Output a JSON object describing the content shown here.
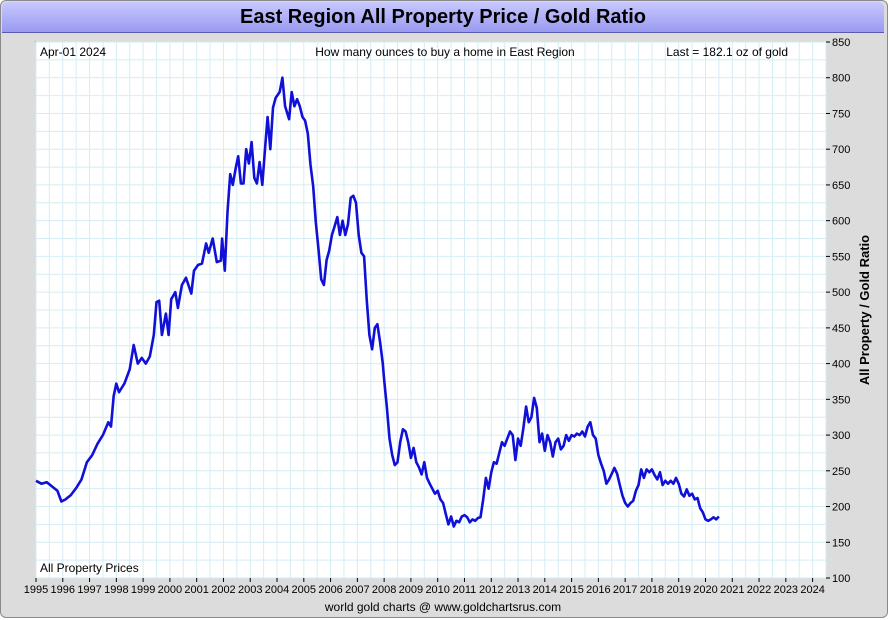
{
  "title": "East Region All Property Price / Gold Ratio",
  "footer": "world gold charts @ www.goldchartsrus.com",
  "colors": {
    "line": "#1010d8",
    "grid": "#d4eef4",
    "title_bg": "#aaaaff",
    "frame": "#dcdcdc"
  },
  "chart_data": {
    "type": "line",
    "title": "East Region All Property Price / Gold Ratio",
    "annotations": {
      "date": "Apr-01  2024",
      "subtitle": "How many ounces to buy a home in East Region",
      "last": "Last = 182.1 oz of gold",
      "series_label": "All Property Prices"
    },
    "xlabel": "",
    "ylabel": "All Property / Gold Ratio",
    "xlim": [
      1995,
      2024.5
    ],
    "ylim": [
      100,
      850
    ],
    "xticks": [
      "1995",
      "1996",
      "1997",
      "1998",
      "1999",
      "2000",
      "2001",
      "2002",
      "2003",
      "2004",
      "2005",
      "2006",
      "2007",
      "2008",
      "2009",
      "2010",
      "2011",
      "2012",
      "2013",
      "2014",
      "2015",
      "2016",
      "2017",
      "2018",
      "2019",
      "2020",
      "2021",
      "2022",
      "2023",
      "2024"
    ],
    "yticks": [
      100,
      150,
      200,
      250,
      300,
      350,
      400,
      450,
      500,
      550,
      600,
      650,
      700,
      750,
      800,
      850
    ],
    "grid": true,
    "series": [
      {
        "values": [
          [
            1995.0,
            236
          ],
          [
            1995.2,
            232
          ],
          [
            1995.4,
            234
          ],
          [
            1995.6,
            228
          ],
          [
            1995.8,
            222
          ],
          [
            1995.95,
            207
          ],
          [
            1996.1,
            210
          ],
          [
            1996.3,
            216
          ],
          [
            1996.5,
            226
          ],
          [
            1996.7,
            238
          ],
          [
            1996.9,
            262
          ],
          [
            1997.1,
            272
          ],
          [
            1997.3,
            288
          ],
          [
            1997.5,
            300
          ],
          [
            1997.7,
            318
          ],
          [
            1997.8,
            312
          ],
          [
            1997.9,
            355
          ],
          [
            1998.0,
            372
          ],
          [
            1998.1,
            360
          ],
          [
            1998.3,
            372
          ],
          [
            1998.5,
            392
          ],
          [
            1998.65,
            426
          ],
          [
            1998.8,
            400
          ],
          [
            1998.95,
            408
          ],
          [
            1999.1,
            400
          ],
          [
            1999.25,
            410
          ],
          [
            1999.4,
            440
          ],
          [
            1999.5,
            486
          ],
          [
            1999.6,
            488
          ],
          [
            1999.7,
            440
          ],
          [
            1999.85,
            470
          ],
          [
            1999.95,
            440
          ],
          [
            2000.05,
            490
          ],
          [
            2000.2,
            500
          ],
          [
            2000.3,
            478
          ],
          [
            2000.45,
            510
          ],
          [
            2000.6,
            520
          ],
          [
            2000.8,
            498
          ],
          [
            2000.9,
            530
          ],
          [
            2001.05,
            538
          ],
          [
            2001.2,
            540
          ],
          [
            2001.35,
            568
          ],
          [
            2001.45,
            555
          ],
          [
            2001.6,
            575
          ],
          [
            2001.75,
            542
          ],
          [
            2001.9,
            544
          ],
          [
            2001.95,
            575
          ],
          [
            2002.05,
            530
          ],
          [
            2002.15,
            612
          ],
          [
            2002.25,
            665
          ],
          [
            2002.35,
            650
          ],
          [
            2002.45,
            672
          ],
          [
            2002.55,
            690
          ],
          [
            2002.65,
            652
          ],
          [
            2002.75,
            652
          ],
          [
            2002.85,
            700
          ],
          [
            2002.95,
            680
          ],
          [
            2003.05,
            710
          ],
          [
            2003.15,
            660
          ],
          [
            2003.25,
            652
          ],
          [
            2003.35,
            682
          ],
          [
            2003.45,
            650
          ],
          [
            2003.55,
            700
          ],
          [
            2003.65,
            745
          ],
          [
            2003.75,
            700
          ],
          [
            2003.85,
            758
          ],
          [
            2003.95,
            772
          ],
          [
            2004.1,
            780
          ],
          [
            2004.2,
            800
          ],
          [
            2004.3,
            760
          ],
          [
            2004.45,
            742
          ],
          [
            2004.55,
            780
          ],
          [
            2004.65,
            760
          ],
          [
            2004.75,
            770
          ],
          [
            2004.85,
            760
          ],
          [
            2004.95,
            745
          ],
          [
            2005.05,
            740
          ],
          [
            2005.15,
            722
          ],
          [
            2005.25,
            678
          ],
          [
            2005.35,
            648
          ],
          [
            2005.45,
            598
          ],
          [
            2005.55,
            560
          ],
          [
            2005.65,
            518
          ],
          [
            2005.75,
            510
          ],
          [
            2005.85,
            545
          ],
          [
            2005.95,
            558
          ],
          [
            2006.05,
            580
          ],
          [
            2006.15,
            592
          ],
          [
            2006.25,
            605
          ],
          [
            2006.35,
            580
          ],
          [
            2006.45,
            600
          ],
          [
            2006.55,
            580
          ],
          [
            2006.65,
            595
          ],
          [
            2006.75,
            632
          ],
          [
            2006.85,
            635
          ],
          [
            2006.95,
            625
          ],
          [
            2007.05,
            580
          ],
          [
            2007.15,
            555
          ],
          [
            2007.25,
            550
          ],
          [
            2007.35,
            490
          ],
          [
            2007.45,
            440
          ],
          [
            2007.55,
            420
          ],
          [
            2007.65,
            450
          ],
          [
            2007.75,
            455
          ],
          [
            2007.85,
            430
          ],
          [
            2007.95,
            400
          ],
          [
            2008.0,
            378
          ],
          [
            2008.1,
            340
          ],
          [
            2008.2,
            295
          ],
          [
            2008.3,
            272
          ],
          [
            2008.4,
            258
          ],
          [
            2008.5,
            262
          ],
          [
            2008.6,
            290
          ],
          [
            2008.7,
            308
          ],
          [
            2008.8,
            305
          ],
          [
            2008.9,
            290
          ],
          [
            2009.0,
            268
          ],
          [
            2009.1,
            282
          ],
          [
            2009.2,
            262
          ],
          [
            2009.3,
            255
          ],
          [
            2009.4,
            245
          ],
          [
            2009.5,
            262
          ],
          [
            2009.6,
            240
          ],
          [
            2009.7,
            232
          ],
          [
            2009.8,
            225
          ],
          [
            2009.9,
            218
          ],
          [
            2010.0,
            222
          ],
          [
            2010.1,
            210
          ],
          [
            2010.2,
            205
          ],
          [
            2010.3,
            190
          ],
          [
            2010.4,
            175
          ],
          [
            2010.5,
            186
          ],
          [
            2010.6,
            172
          ],
          [
            2010.7,
            180
          ],
          [
            2010.8,
            178
          ],
          [
            2010.9,
            186
          ],
          [
            2011.0,
            188
          ],
          [
            2011.1,
            185
          ],
          [
            2011.2,
            178
          ],
          [
            2011.3,
            182
          ],
          [
            2011.4,
            180
          ],
          [
            2011.5,
            184
          ],
          [
            2011.6,
            185
          ],
          [
            2011.7,
            210
          ],
          [
            2011.8,
            240
          ],
          [
            2011.9,
            225
          ],
          [
            2012.0,
            248
          ],
          [
            2012.1,
            262
          ],
          [
            2012.2,
            260
          ],
          [
            2012.3,
            275
          ],
          [
            2012.4,
            290
          ],
          [
            2012.5,
            285
          ],
          [
            2012.6,
            295
          ],
          [
            2012.7,
            305
          ],
          [
            2012.8,
            300
          ],
          [
            2012.9,
            265
          ],
          [
            2013.0,
            295
          ],
          [
            2013.1,
            285
          ],
          [
            2013.2,
            310
          ],
          [
            2013.3,
            340
          ],
          [
            2013.4,
            318
          ],
          [
            2013.5,
            325
          ],
          [
            2013.6,
            352
          ],
          [
            2013.7,
            338
          ],
          [
            2013.8,
            290
          ],
          [
            2013.9,
            302
          ],
          [
            2014.0,
            278
          ],
          [
            2014.1,
            300
          ],
          [
            2014.2,
            290
          ],
          [
            2014.3,
            270
          ],
          [
            2014.4,
            290
          ],
          [
            2014.5,
            295
          ],
          [
            2014.6,
            280
          ],
          [
            2014.7,
            285
          ],
          [
            2014.8,
            300
          ],
          [
            2014.9,
            292
          ],
          [
            2015.0,
            300
          ],
          [
            2015.1,
            298
          ],
          [
            2015.2,
            302
          ],
          [
            2015.3,
            300
          ],
          [
            2015.4,
            305
          ],
          [
            2015.5,
            298
          ],
          [
            2015.6,
            312
          ],
          [
            2015.7,
            318
          ],
          [
            2015.8,
            300
          ],
          [
            2015.9,
            295
          ],
          [
            2016.0,
            272
          ],
          [
            2016.1,
            260
          ],
          [
            2016.2,
            250
          ],
          [
            2016.3,
            232
          ],
          [
            2016.4,
            238
          ],
          [
            2016.5,
            246
          ],
          [
            2016.6,
            254
          ],
          [
            2016.7,
            246
          ],
          [
            2016.8,
            230
          ],
          [
            2016.9,
            215
          ],
          [
            2017.0,
            205
          ],
          [
            2017.1,
            200
          ],
          [
            2017.2,
            205
          ],
          [
            2017.3,
            208
          ],
          [
            2017.4,
            222
          ],
          [
            2017.5,
            230
          ],
          [
            2017.6,
            252
          ],
          [
            2017.7,
            240
          ],
          [
            2017.8,
            252
          ],
          [
            2017.9,
            248
          ],
          [
            2018.0,
            252
          ],
          [
            2018.1,
            244
          ],
          [
            2018.2,
            238
          ],
          [
            2018.3,
            248
          ],
          [
            2018.4,
            230
          ],
          [
            2018.5,
            236
          ],
          [
            2018.6,
            232
          ],
          [
            2018.7,
            236
          ],
          [
            2018.8,
            232
          ],
          [
            2018.9,
            240
          ],
          [
            2019.0,
            232
          ],
          [
            2019.1,
            218
          ],
          [
            2019.2,
            214
          ],
          [
            2019.3,
            224
          ],
          [
            2019.4,
            215
          ],
          [
            2019.5,
            218
          ],
          [
            2019.6,
            210
          ],
          [
            2019.7,
            212
          ],
          [
            2019.8,
            198
          ],
          [
            2019.9,
            192
          ],
          [
            2020.0,
            182
          ],
          [
            2020.1,
            180
          ],
          [
            2020.2,
            182
          ],
          [
            2020.3,
            185
          ],
          [
            2020.4,
            182
          ],
          [
            2020.5,
            186
          ]
        ]
      }
    ]
  }
}
